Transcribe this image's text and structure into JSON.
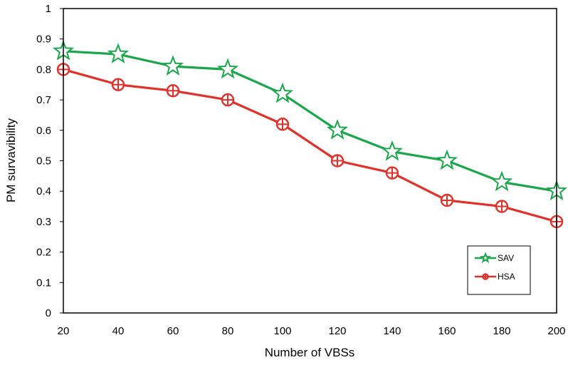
{
  "chart_data": {
    "type": "line",
    "title": "",
    "xlabel": "Number of VBSs",
    "ylabel": "PM survavibility",
    "x": [
      20,
      40,
      60,
      80,
      100,
      120,
      140,
      160,
      180,
      200
    ],
    "xlim": [
      20,
      200
    ],
    "ylim": [
      0,
      1
    ],
    "x_ticks": [
      "20",
      "40",
      "60",
      "80",
      "100",
      "120",
      "140",
      "160",
      "180",
      "200"
    ],
    "y_ticks": [
      "0",
      "0.1",
      "0.2",
      "0.3",
      "0.4",
      "0.5",
      "0.6",
      "0.7",
      "0.8",
      "0.9",
      "1"
    ],
    "grid": false,
    "legend_position": "bottom-right",
    "series": [
      {
        "name": "SAV",
        "color": "#1aa64a",
        "marker": "star",
        "values": [
          0.86,
          0.85,
          0.81,
          0.8,
          0.72,
          0.6,
          0.53,
          0.5,
          0.43,
          0.4
        ]
      },
      {
        "name": "HSA",
        "color": "#e0312b",
        "marker": "circle-plus",
        "values": [
          0.8,
          0.75,
          0.73,
          0.7,
          0.62,
          0.5,
          0.46,
          0.37,
          0.35,
          0.3
        ]
      }
    ]
  }
}
